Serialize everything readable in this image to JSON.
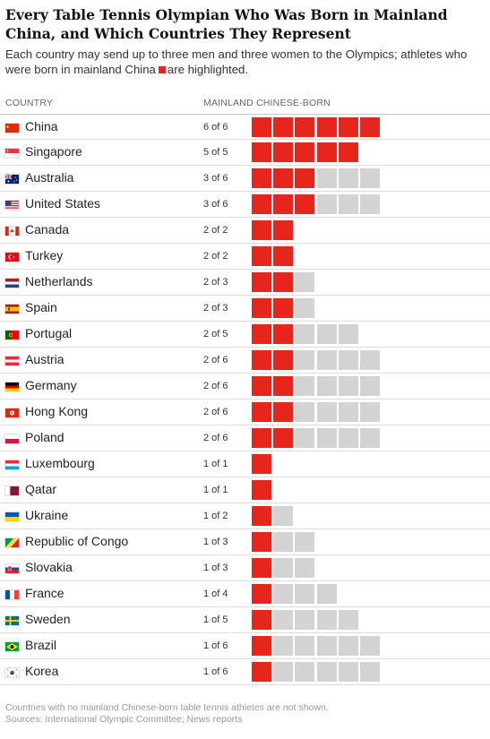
{
  "title": "Every Table Tennis Olympian Who Was Born in Mainland China, and Which Countries They Represent",
  "subtitle_before": "Each country may send up to three men and three women to the Olympics; athletes who were born in mainland China",
  "subtitle_after": "are highlighted.",
  "colors": {
    "highlight": "#e8251b",
    "other": "#d3d3d3"
  },
  "chart_data": {
    "type": "table",
    "columns": [
      "COUNTRY",
      "MAINLAND CHINESE-BORN"
    ],
    "rows": [
      {
        "country": "China",
        "count_label": "6 of 6",
        "born": 6,
        "total": 6,
        "flag": "china-flag"
      },
      {
        "country": "Singapore",
        "count_label": "5 of 5",
        "born": 5,
        "total": 5,
        "flag": "singapore-flag"
      },
      {
        "country": "Australia",
        "count_label": "3 of 6",
        "born": 3,
        "total": 6,
        "flag": "australia-flag"
      },
      {
        "country": "United States",
        "count_label": "3 of 6",
        "born": 3,
        "total": 6,
        "flag": "united-states-flag"
      },
      {
        "country": "Canada",
        "count_label": "2 of 2",
        "born": 2,
        "total": 2,
        "flag": "canada-flag"
      },
      {
        "country": "Turkey",
        "count_label": "2 of 2",
        "born": 2,
        "total": 2,
        "flag": "turkey-flag"
      },
      {
        "country": "Netherlands",
        "count_label": "2 of 3",
        "born": 2,
        "total": 3,
        "flag": "netherlands-flag"
      },
      {
        "country": "Spain",
        "count_label": "2 of 3",
        "born": 2,
        "total": 3,
        "flag": "spain-flag"
      },
      {
        "country": "Portugal",
        "count_label": "2 of 5",
        "born": 2,
        "total": 5,
        "flag": "portugal-flag"
      },
      {
        "country": "Austria",
        "count_label": "2 of 6",
        "born": 2,
        "total": 6,
        "flag": "austria-flag"
      },
      {
        "country": "Germany",
        "count_label": "2 of 6",
        "born": 2,
        "total": 6,
        "flag": "germany-flag"
      },
      {
        "country": "Hong Kong",
        "count_label": "2 of 6",
        "born": 2,
        "total": 6,
        "flag": "hong-kong-flag"
      },
      {
        "country": "Poland",
        "count_label": "2 of 6",
        "born": 2,
        "total": 6,
        "flag": "poland-flag"
      },
      {
        "country": "Luxembourg",
        "count_label": "1 of 1",
        "born": 1,
        "total": 1,
        "flag": "luxembourg-flag"
      },
      {
        "country": "Qatar",
        "count_label": "1 of 1",
        "born": 1,
        "total": 1,
        "flag": "qatar-flag"
      },
      {
        "country": "Ukraine",
        "count_label": "1 of 2",
        "born": 1,
        "total": 2,
        "flag": "ukraine-flag"
      },
      {
        "country": "Republic of Congo",
        "count_label": "1 of 3",
        "born": 1,
        "total": 3,
        "flag": "republic-of-congo-flag"
      },
      {
        "country": "Slovakia",
        "count_label": "1 of 3",
        "born": 1,
        "total": 3,
        "flag": "slovakia-flag"
      },
      {
        "country": "France",
        "count_label": "1 of 4",
        "born": 1,
        "total": 4,
        "flag": "france-flag"
      },
      {
        "country": "Sweden",
        "count_label": "1 of 5",
        "born": 1,
        "total": 5,
        "flag": "sweden-flag"
      },
      {
        "country": "Brazil",
        "count_label": "1 of 6",
        "born": 1,
        "total": 6,
        "flag": "brazil-flag"
      },
      {
        "country": "Korea",
        "count_label": "1 of 6",
        "born": 1,
        "total": 6,
        "flag": "korea-flag"
      }
    ]
  },
  "footnote": "Countries with no mainland Chinese-born table tennis athletes are not shown.",
  "sources": "Sources: International Olympic Committee; News reports"
}
